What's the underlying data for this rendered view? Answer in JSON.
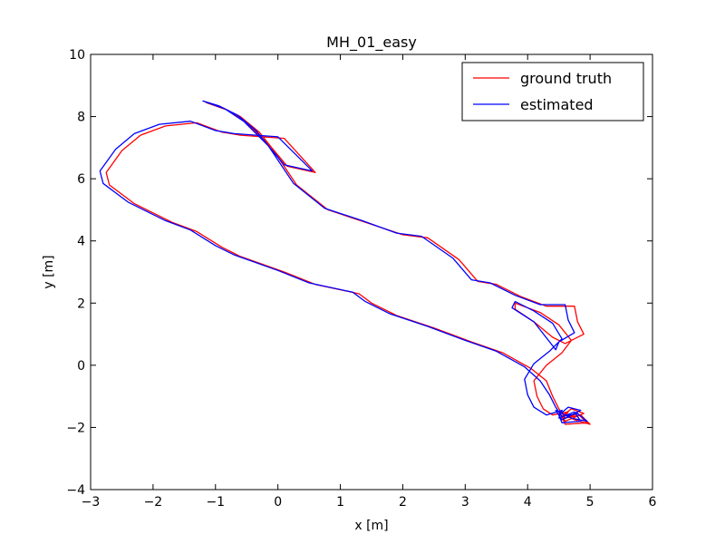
{
  "chart_data": {
    "type": "line",
    "title": "MH_01_easy",
    "xlabel": "x [m]",
    "ylabel": "y [m]",
    "xlim": [
      -3,
      6
    ],
    "ylim": [
      -4,
      10
    ],
    "xticks": [
      -3,
      -2,
      -1,
      0,
      1,
      2,
      3,
      4,
      5,
      6
    ],
    "yticks": [
      -4,
      -2,
      0,
      2,
      4,
      6,
      8,
      10
    ],
    "xtick_labels": [
      "−3",
      "−2",
      "−1",
      "0",
      "1",
      "2",
      "3",
      "4",
      "5",
      "6"
    ],
    "ytick_labels": [
      "−4",
      "−2",
      "0",
      "2",
      "4",
      "6",
      "8",
      "10"
    ],
    "grid": false,
    "legend_position": "top-right",
    "series": [
      {
        "name": "ground truth",
        "color": "#ff0000",
        "points": [
          [
            4.55,
            -1.65
          ],
          [
            4.7,
            -1.4
          ],
          [
            4.9,
            -1.55
          ],
          [
            4.6,
            -1.8
          ],
          [
            4.5,
            -1.5
          ],
          [
            4.75,
            -1.75
          ],
          [
            5.0,
            -1.9
          ],
          [
            4.85,
            -1.6
          ],
          [
            4.6,
            -1.7
          ],
          [
            4.5,
            -1.4
          ],
          [
            4.4,
            -1.0
          ],
          [
            4.3,
            -0.5
          ],
          [
            4.05,
            -0.1
          ],
          [
            3.6,
            0.4
          ],
          [
            3.1,
            0.75
          ],
          [
            2.5,
            1.2
          ],
          [
            1.9,
            1.6
          ],
          [
            1.5,
            2.0
          ],
          [
            1.3,
            2.3
          ],
          [
            0.6,
            2.6
          ],
          [
            0.1,
            3.0
          ],
          [
            -0.6,
            3.5
          ],
          [
            -0.9,
            3.8
          ],
          [
            -1.3,
            4.3
          ],
          [
            -1.7,
            4.6
          ],
          [
            -2.3,
            5.2
          ],
          [
            -2.7,
            5.8
          ],
          [
            -2.75,
            6.2
          ],
          [
            -2.5,
            6.9
          ],
          [
            -2.2,
            7.4
          ],
          [
            -1.8,
            7.7
          ],
          [
            -1.3,
            7.8
          ],
          [
            -0.9,
            7.5
          ],
          [
            -0.6,
            7.4
          ],
          [
            0.1,
            7.3
          ],
          [
            0.6,
            6.2
          ],
          [
            0.15,
            6.4
          ],
          [
            -0.1,
            7.0
          ],
          [
            -0.3,
            7.5
          ],
          [
            -0.6,
            8.0
          ],
          [
            -0.9,
            8.3
          ],
          [
            -1.15,
            8.45
          ],
          [
            -0.8,
            8.2
          ],
          [
            -0.5,
            7.8
          ],
          [
            -0.1,
            7.0
          ],
          [
            0.3,
            5.8
          ],
          [
            0.8,
            5.0
          ],
          [
            1.4,
            4.6
          ],
          [
            2.0,
            4.2
          ],
          [
            2.4,
            4.1
          ],
          [
            2.9,
            3.4
          ],
          [
            3.2,
            2.7
          ],
          [
            3.5,
            2.6
          ],
          [
            3.9,
            2.2
          ],
          [
            4.3,
            1.9
          ],
          [
            4.75,
            1.9
          ],
          [
            4.8,
            1.4
          ],
          [
            4.9,
            1.0
          ],
          [
            4.6,
            0.7
          ],
          [
            4.4,
            0.9
          ],
          [
            4.1,
            1.4
          ],
          [
            3.8,
            1.8
          ],
          [
            3.8,
            2.0
          ],
          [
            4.2,
            1.7
          ],
          [
            4.5,
            1.3
          ],
          [
            4.7,
            0.8
          ],
          [
            4.55,
            0.4
          ],
          [
            4.3,
            0.0
          ],
          [
            4.1,
            -0.5
          ],
          [
            4.15,
            -1.0
          ],
          [
            4.25,
            -1.4
          ],
          [
            4.4,
            -1.6
          ],
          [
            4.65,
            -1.5
          ],
          [
            4.55,
            -1.75
          ],
          [
            4.8,
            -1.55
          ],
          [
            4.95,
            -1.85
          ],
          [
            4.6,
            -1.9
          ],
          [
            4.55,
            -1.65
          ]
        ]
      },
      {
        "name": "estimated",
        "color": "#0000ff",
        "points": [
          [
            4.5,
            -1.6
          ],
          [
            4.65,
            -1.35
          ],
          [
            4.85,
            -1.45
          ],
          [
            4.55,
            -1.75
          ],
          [
            4.45,
            -1.45
          ],
          [
            4.7,
            -1.7
          ],
          [
            4.95,
            -1.8
          ],
          [
            4.8,
            -1.55
          ],
          [
            4.55,
            -1.65
          ],
          [
            4.45,
            -1.35
          ],
          [
            4.35,
            -0.95
          ],
          [
            4.2,
            -0.5
          ],
          [
            3.95,
            -0.05
          ],
          [
            3.5,
            0.45
          ],
          [
            3.0,
            0.8
          ],
          [
            2.4,
            1.25
          ],
          [
            1.8,
            1.65
          ],
          [
            1.4,
            2.05
          ],
          [
            1.2,
            2.35
          ],
          [
            0.5,
            2.65
          ],
          [
            0.0,
            3.05
          ],
          [
            -0.7,
            3.55
          ],
          [
            -1.0,
            3.85
          ],
          [
            -1.4,
            4.35
          ],
          [
            -1.8,
            4.65
          ],
          [
            -2.4,
            5.25
          ],
          [
            -2.8,
            5.85
          ],
          [
            -2.85,
            6.25
          ],
          [
            -2.6,
            6.95
          ],
          [
            -2.3,
            7.45
          ],
          [
            -1.9,
            7.75
          ],
          [
            -1.4,
            7.85
          ],
          [
            -1.0,
            7.55
          ],
          [
            -0.7,
            7.45
          ],
          [
            0.0,
            7.35
          ],
          [
            0.55,
            6.25
          ],
          [
            0.1,
            6.45
          ],
          [
            -0.15,
            7.05
          ],
          [
            -0.35,
            7.55
          ],
          [
            -0.65,
            8.05
          ],
          [
            -0.95,
            8.35
          ],
          [
            -1.2,
            8.5
          ],
          [
            -0.85,
            8.25
          ],
          [
            -0.55,
            7.85
          ],
          [
            -0.15,
            7.05
          ],
          [
            0.25,
            5.85
          ],
          [
            0.75,
            5.05
          ],
          [
            1.35,
            4.65
          ],
          [
            1.9,
            4.25
          ],
          [
            2.3,
            4.15
          ],
          [
            2.8,
            3.45
          ],
          [
            3.1,
            2.75
          ],
          [
            3.4,
            2.65
          ],
          [
            3.8,
            2.25
          ],
          [
            4.2,
            1.95
          ],
          [
            4.6,
            1.95
          ],
          [
            4.65,
            1.45
          ],
          [
            4.75,
            1.05
          ],
          [
            4.5,
            0.75
          ],
          [
            4.45,
            0.5
          ],
          [
            4.1,
            1.4
          ],
          [
            3.75,
            1.85
          ],
          [
            3.8,
            2.05
          ],
          [
            4.1,
            1.75
          ],
          [
            4.4,
            1.35
          ],
          [
            4.55,
            0.85
          ],
          [
            4.35,
            0.45
          ],
          [
            4.1,
            0.05
          ],
          [
            3.95,
            -0.45
          ],
          [
            4.0,
            -0.95
          ],
          [
            4.1,
            -1.35
          ],
          [
            4.3,
            -1.6
          ],
          [
            4.55,
            -1.45
          ],
          [
            4.5,
            -1.7
          ],
          [
            4.75,
            -1.5
          ],
          [
            4.85,
            -1.8
          ],
          [
            4.55,
            -1.85
          ],
          [
            4.5,
            -1.6
          ]
        ]
      }
    ]
  }
}
